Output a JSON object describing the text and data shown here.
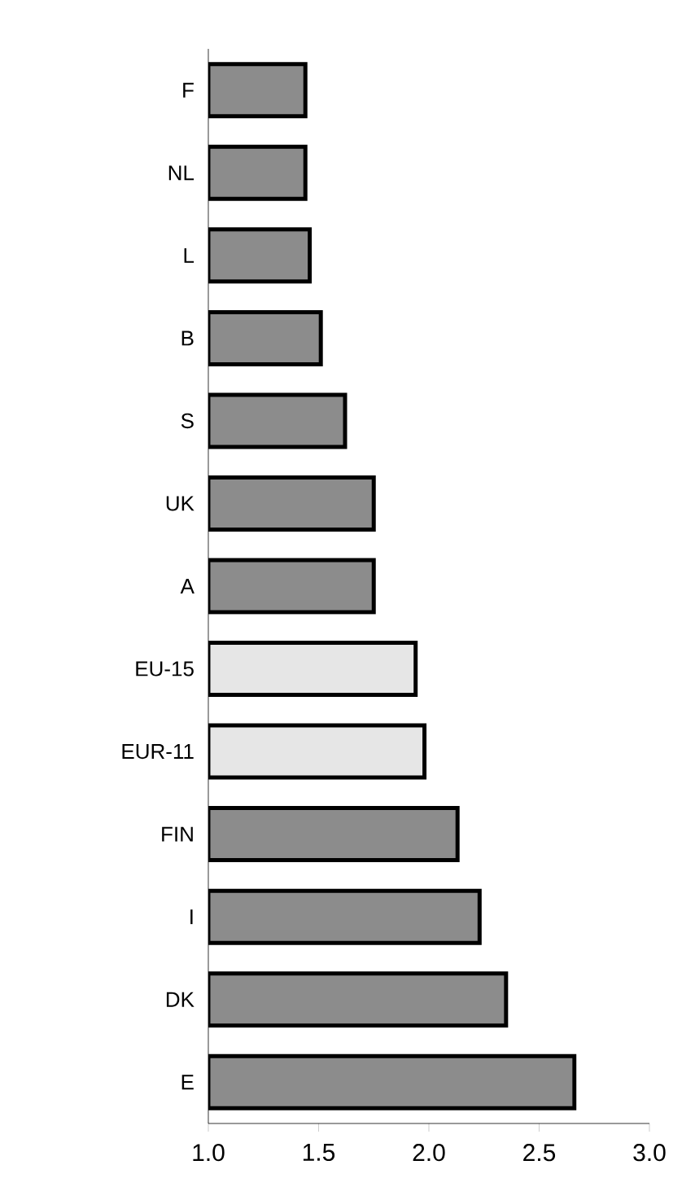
{
  "chart_data": {
    "type": "bar",
    "orientation": "horizontal",
    "categories": [
      "F",
      "NL",
      "L",
      "B",
      "S",
      "UK",
      "A",
      "EU-15",
      "EUR-11",
      "FIN",
      "I",
      "DK",
      "E"
    ],
    "values": [
      1.44,
      1.44,
      1.46,
      1.51,
      1.62,
      1.75,
      1.75,
      1.94,
      1.98,
      2.13,
      2.23,
      2.35,
      2.66
    ],
    "colors": [
      "#8c8c8c",
      "#8c8c8c",
      "#8c8c8c",
      "#8c8c8c",
      "#8c8c8c",
      "#8c8c8c",
      "#8c8c8c",
      "#e6e6e6",
      "#e6e6e6",
      "#8c8c8c",
      "#8c8c8c",
      "#8c8c8c",
      "#8c8c8c"
    ],
    "xlim": [
      1.0,
      3.0
    ],
    "xticks": [
      {
        "value": 1.0,
        "label": "1.0"
      },
      {
        "value": 1.5,
        "label": "1.5"
      },
      {
        "value": 2.0,
        "label": "2.0"
      },
      {
        "value": 2.5,
        "label": "2.5"
      },
      {
        "value": 3.0,
        "label": "3.0"
      }
    ]
  }
}
